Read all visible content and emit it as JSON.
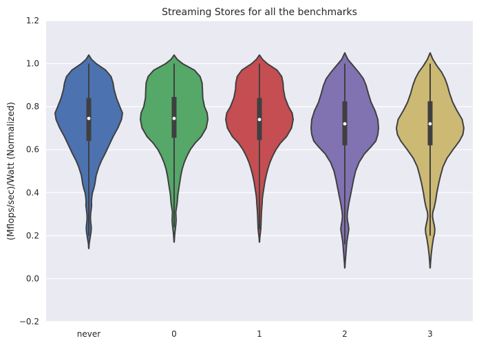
{
  "chart_data": {
    "type": "violin",
    "title": "Streaming Stores for all the benchmarks",
    "xlabel": "",
    "ylabel": "(Mflops/sec)/Watt (Normalized)",
    "ylim": [
      -0.2,
      1.2
    ],
    "yticks": [
      -0.2,
      0.0,
      0.2,
      0.4,
      0.6,
      0.8,
      1.0,
      1.2
    ],
    "ytick_labels": [
      "−0.2",
      "0.0",
      "0.2",
      "0.4",
      "0.6",
      "0.8",
      "1.0",
      "1.2"
    ],
    "grid": true,
    "categories": [
      "never",
      "0",
      "1",
      "2",
      "3"
    ],
    "colors": [
      "#4c72b0",
      "#55a868",
      "#c44e52",
      "#8172b2",
      "#ccb974"
    ],
    "outline_color": "#3f3f3f",
    "background": "#eaeaf2",
    "series": [
      {
        "category": "never",
        "min": 0.14,
        "max": 1.04,
        "q1": 0.64,
        "median": 0.745,
        "q3": 0.84,
        "whisker_low": 0.2,
        "whisker_high": 1.0,
        "density": [
          [
            0.14,
            0.003
          ],
          [
            0.16,
            0.01
          ],
          [
            0.18,
            0.03
          ],
          [
            0.2,
            0.05
          ],
          [
            0.22,
            0.07
          ],
          [
            0.24,
            0.075
          ],
          [
            0.26,
            0.06
          ],
          [
            0.28,
            0.05
          ],
          [
            0.3,
            0.055
          ],
          [
            0.32,
            0.07
          ],
          [
            0.34,
            0.085
          ],
          [
            0.36,
            0.08
          ],
          [
            0.38,
            0.09
          ],
          [
            0.4,
            0.11
          ],
          [
            0.42,
            0.15
          ],
          [
            0.44,
            0.18
          ],
          [
            0.46,
            0.2
          ],
          [
            0.48,
            0.22
          ],
          [
            0.5,
            0.26
          ],
          [
            0.52,
            0.3
          ],
          [
            0.55,
            0.38
          ],
          [
            0.58,
            0.48
          ],
          [
            0.62,
            0.6
          ],
          [
            0.66,
            0.72
          ],
          [
            0.7,
            0.86
          ],
          [
            0.74,
            0.97
          ],
          [
            0.77,
            1.0
          ],
          [
            0.8,
            0.92
          ],
          [
            0.84,
            0.82
          ],
          [
            0.88,
            0.75
          ],
          [
            0.91,
            0.72
          ],
          [
            0.94,
            0.66
          ],
          [
            0.97,
            0.5
          ],
          [
            1.0,
            0.22
          ],
          [
            1.02,
            0.08
          ],
          [
            1.04,
            0.0
          ]
        ]
      },
      {
        "category": "0",
        "min": 0.17,
        "max": 1.04,
        "q1": 0.655,
        "median": 0.745,
        "q3": 0.845,
        "whisker_low": 0.24,
        "whisker_high": 1.0,
        "density": [
          [
            0.17,
            0.003
          ],
          [
            0.19,
            0.01
          ],
          [
            0.21,
            0.02
          ],
          [
            0.23,
            0.035
          ],
          [
            0.25,
            0.05
          ],
          [
            0.27,
            0.06
          ],
          [
            0.29,
            0.055
          ],
          [
            0.31,
            0.05
          ],
          [
            0.33,
            0.07
          ],
          [
            0.35,
            0.09
          ],
          [
            0.37,
            0.1
          ],
          [
            0.39,
            0.11
          ],
          [
            0.42,
            0.14
          ],
          [
            0.45,
            0.17
          ],
          [
            0.48,
            0.2
          ],
          [
            0.51,
            0.24
          ],
          [
            0.54,
            0.3
          ],
          [
            0.57,
            0.38
          ],
          [
            0.6,
            0.48
          ],
          [
            0.63,
            0.62
          ],
          [
            0.66,
            0.8
          ],
          [
            0.7,
            0.95
          ],
          [
            0.74,
            1.0
          ],
          [
            0.77,
            0.98
          ],
          [
            0.8,
            0.9
          ],
          [
            0.84,
            0.85
          ],
          [
            0.88,
            0.84
          ],
          [
            0.91,
            0.83
          ],
          [
            0.94,
            0.77
          ],
          [
            0.97,
            0.6
          ],
          [
            1.0,
            0.25
          ],
          [
            1.02,
            0.09
          ],
          [
            1.04,
            0.0
          ]
        ]
      },
      {
        "category": "1",
        "min": 0.17,
        "max": 1.04,
        "q1": 0.645,
        "median": 0.74,
        "q3": 0.84,
        "whisker_low": 0.23,
        "whisker_high": 1.0,
        "density": [
          [
            0.17,
            0.003
          ],
          [
            0.19,
            0.01
          ],
          [
            0.21,
            0.025
          ],
          [
            0.23,
            0.04
          ],
          [
            0.25,
            0.045
          ],
          [
            0.27,
            0.05
          ],
          [
            0.29,
            0.055
          ],
          [
            0.31,
            0.06
          ],
          [
            0.33,
            0.07
          ],
          [
            0.35,
            0.08
          ],
          [
            0.37,
            0.085
          ],
          [
            0.39,
            0.1
          ],
          [
            0.42,
            0.13
          ],
          [
            0.45,
            0.16
          ],
          [
            0.48,
            0.2
          ],
          [
            0.51,
            0.25
          ],
          [
            0.54,
            0.31
          ],
          [
            0.57,
            0.39
          ],
          [
            0.6,
            0.49
          ],
          [
            0.63,
            0.62
          ],
          [
            0.66,
            0.8
          ],
          [
            0.7,
            0.95
          ],
          [
            0.74,
            1.0
          ],
          [
            0.77,
            0.97
          ],
          [
            0.8,
            0.86
          ],
          [
            0.84,
            0.76
          ],
          [
            0.88,
            0.71
          ],
          [
            0.91,
            0.7
          ],
          [
            0.94,
            0.66
          ],
          [
            0.97,
            0.52
          ],
          [
            1.0,
            0.23
          ],
          [
            1.02,
            0.09
          ],
          [
            1.04,
            0.0
          ]
        ]
      },
      {
        "category": "2",
        "min": 0.05,
        "max": 1.05,
        "q1": 0.62,
        "median": 0.72,
        "q3": 0.825,
        "whisker_low": 0.16,
        "whisker_high": 1.0,
        "density": [
          [
            0.05,
            0.003
          ],
          [
            0.07,
            0.01
          ],
          [
            0.09,
            0.02
          ],
          [
            0.11,
            0.03
          ],
          [
            0.13,
            0.04
          ],
          [
            0.15,
            0.05
          ],
          [
            0.17,
            0.06
          ],
          [
            0.19,
            0.08
          ],
          [
            0.21,
            0.1
          ],
          [
            0.23,
            0.12
          ],
          [
            0.25,
            0.105
          ],
          [
            0.27,
            0.08
          ],
          [
            0.29,
            0.07
          ],
          [
            0.31,
            0.08
          ],
          [
            0.33,
            0.1
          ],
          [
            0.35,
            0.12
          ],
          [
            0.38,
            0.16
          ],
          [
            0.42,
            0.21
          ],
          [
            0.46,
            0.26
          ],
          [
            0.5,
            0.32
          ],
          [
            0.54,
            0.42
          ],
          [
            0.58,
            0.58
          ],
          [
            0.61,
            0.76
          ],
          [
            0.64,
            0.92
          ],
          [
            0.67,
            0.98
          ],
          [
            0.7,
            1.0
          ],
          [
            0.74,
            0.98
          ],
          [
            0.78,
            0.9
          ],
          [
            0.82,
            0.78
          ],
          [
            0.86,
            0.7
          ],
          [
            0.9,
            0.63
          ],
          [
            0.93,
            0.55
          ],
          [
            0.96,
            0.41
          ],
          [
            0.99,
            0.25
          ],
          [
            1.02,
            0.09
          ],
          [
            1.05,
            0.0
          ]
        ]
      },
      {
        "category": "3",
        "min": 0.05,
        "max": 1.05,
        "q1": 0.62,
        "median": 0.72,
        "q3": 0.825,
        "whisker_low": 0.2,
        "whisker_high": 1.0,
        "density": [
          [
            0.05,
            0.003
          ],
          [
            0.07,
            0.01
          ],
          [
            0.09,
            0.02
          ],
          [
            0.11,
            0.03
          ],
          [
            0.13,
            0.045
          ],
          [
            0.15,
            0.06
          ],
          [
            0.17,
            0.08
          ],
          [
            0.19,
            0.1
          ],
          [
            0.21,
            0.13
          ],
          [
            0.23,
            0.14
          ],
          [
            0.25,
            0.12
          ],
          [
            0.27,
            0.09
          ],
          [
            0.29,
            0.07
          ],
          [
            0.31,
            0.08
          ],
          [
            0.33,
            0.12
          ],
          [
            0.36,
            0.16
          ],
          [
            0.4,
            0.2
          ],
          [
            0.44,
            0.25
          ],
          [
            0.48,
            0.31
          ],
          [
            0.52,
            0.38
          ],
          [
            0.56,
            0.5
          ],
          [
            0.6,
            0.68
          ],
          [
            0.64,
            0.87
          ],
          [
            0.67,
            0.97
          ],
          [
            0.7,
            1.0
          ],
          [
            0.74,
            0.95
          ],
          [
            0.78,
            0.8
          ],
          [
            0.82,
            0.67
          ],
          [
            0.86,
            0.58
          ],
          [
            0.9,
            0.51
          ],
          [
            0.93,
            0.44
          ],
          [
            0.96,
            0.34
          ],
          [
            0.99,
            0.2
          ],
          [
            1.02,
            0.08
          ],
          [
            1.05,
            0.0
          ]
        ]
      }
    ]
  }
}
